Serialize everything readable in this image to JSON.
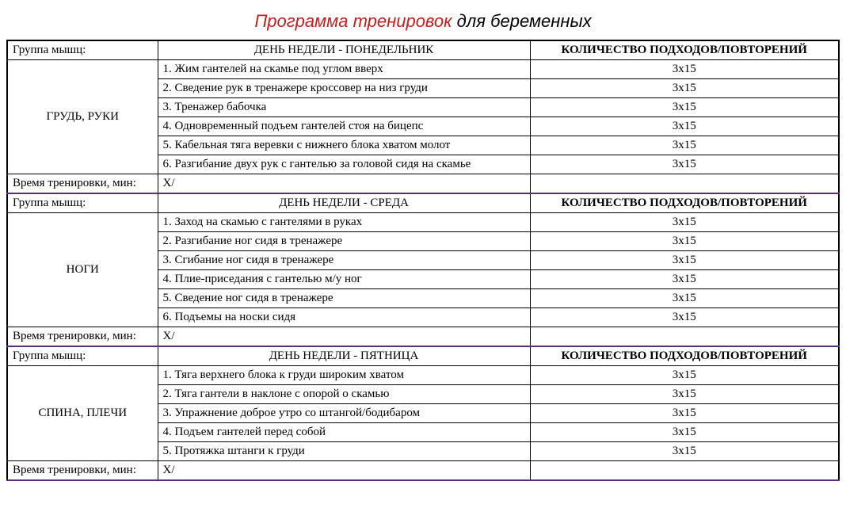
{
  "title": {
    "part1": "Программа тренировок",
    "part2": " для беременных",
    "color1": "#c41e1e",
    "color2": "#000000"
  },
  "columns": {
    "group_label": "Группа мышц:",
    "sets_label": "КОЛИЧЕСТВО ПОДХОДОВ/ПОВТОРЕНИЙ",
    "time_label": "Время тренировки, мин:",
    "time_value": "X/"
  },
  "days": [
    {
      "day_header": "ДЕНЬ НЕДЕЛИ - ПОНЕДЕЛЬНИК",
      "group": "ГРУДЬ, РУКИ",
      "exercises": [
        {
          "name": "1. Жим гантелей на скамье под углом вверх",
          "sets": "3х15"
        },
        {
          "name": "2. Сведение рук в тренажере кроссовер на низ груди",
          "sets": "3х15"
        },
        {
          "name": "3. Тренажер бабочка",
          "sets": "3х15"
        },
        {
          "name": "4. Одновременный подъем гантелей стоя на бицепс",
          "sets": "3х15"
        },
        {
          "name": "5. Кабельная тяга веревки с нижнего блока хватом молот",
          "sets": "3х15"
        },
        {
          "name": "6. Разгибание двух рук с гантелью за головой сидя на скамье",
          "sets": "3х15"
        }
      ]
    },
    {
      "day_header": "ДЕНЬ НЕДЕЛИ - СРЕДА",
      "group": "НОГИ",
      "exercises": [
        {
          "name": "1. Заход на скамью с гантелями в руках",
          "sets": "3х15"
        },
        {
          "name": "2. Разгибание ног сидя в тренажере",
          "sets": "3х15"
        },
        {
          "name": "3. Сгибание ног сидя в тренажере",
          "sets": "3х15"
        },
        {
          "name": "4. Плие-приседания с гантелью м/у ног",
          "sets": "3х15"
        },
        {
          "name": "5. Сведение ног сидя в тренажере",
          "sets": "3х15"
        },
        {
          "name": "6. Подъемы на носки сидя",
          "sets": "3х15"
        }
      ]
    },
    {
      "day_header": "ДЕНЬ НЕДЕЛИ - ПЯТНИЦА",
      "group": "СПИНА, ПЛЕЧИ",
      "exercises": [
        {
          "name": "1. Тяга верхнего блока к груди широким хватом",
          "sets": "3х15"
        },
        {
          "name": "2. Тяга гантели в наклоне с опорой о скамью",
          "sets": "3х15"
        },
        {
          "name": "3. Упражнение доброе утро со штангой/бодибаром",
          "sets": "3х15"
        },
        {
          "name": "4. Подъем гантелей перед собой",
          "sets": "3х15"
        },
        {
          "name": "5. Протяжка штанги к груди",
          "sets": "3х15"
        }
      ]
    }
  ],
  "styling": {
    "background_color": "#ffffff",
    "border_color": "#000000",
    "separator_color": "#5a2d7a",
    "font_family": "Georgia, Times New Roman, serif",
    "title_font_family": "Comic Sans MS, cursive",
    "base_font_size": 15,
    "title_font_size": 22,
    "column_widths": {
      "group": 190,
      "sets": 390
    }
  }
}
